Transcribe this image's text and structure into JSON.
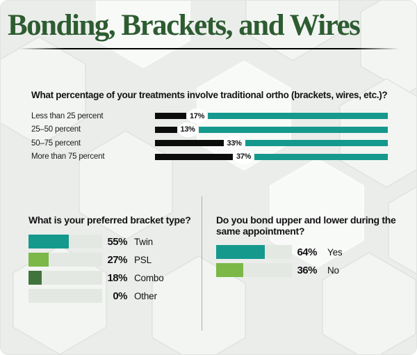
{
  "title": "Bonding, Brackets, and Wires",
  "colors": {
    "title_green": "#2d5c31",
    "teal": "#16998d",
    "light_green": "#7bb848",
    "dark_green": "#41743c",
    "bar_black": "#0c0c0c",
    "track_gray": "#e4e8e2"
  },
  "q1": {
    "question": "What percentage of your treatments involve traditional ortho (brackets, wires, etc.)?",
    "rows": [
      {
        "label": "Less than 25 percent",
        "pct": 17,
        "pct_label": "17%"
      },
      {
        "label": "25–50 percent",
        "pct": 13,
        "pct_label": "13%"
      },
      {
        "label": "50–75 percent",
        "pct": 33,
        "pct_label": "33%"
      },
      {
        "label": "More than 75 percent",
        "pct": 37,
        "pct_label": "37%"
      }
    ]
  },
  "q2": {
    "question": "What is your preferred bracket type?",
    "rows": [
      {
        "name": "Twin",
        "pct": 55,
        "pct_label": "55%",
        "color": "#16998d"
      },
      {
        "name": "PSL",
        "pct": 27,
        "pct_label": "27%",
        "color": "#7bb848"
      },
      {
        "name": "Combo",
        "pct": 18,
        "pct_label": "18%",
        "color": "#41743c"
      },
      {
        "name": "Other",
        "pct": 0,
        "pct_label": "0%",
        "color": null
      }
    ]
  },
  "q3": {
    "question_line1": "Do you bond upper and lower during the",
    "question_line2": "same appointment?",
    "rows": [
      {
        "name": "Yes",
        "pct": 64,
        "pct_label": "64%",
        "color": "#16998d"
      },
      {
        "name": "No",
        "pct": 36,
        "pct_label": "36%",
        "color": "#7bb848"
      }
    ]
  },
  "chart_data": [
    {
      "type": "bar",
      "orientation": "horizontal",
      "title": "What percentage of your treatments involve traditional ortho (brackets, wires, etc.)?",
      "categories": [
        "Less than 25 percent",
        "25–50 percent",
        "50–75 percent",
        "More than 75 percent"
      ],
      "values": [
        17,
        13,
        33,
        37
      ],
      "unit": "%",
      "style_note": "black segment = value, teal segment = remainder to 100%, value shown in white circle"
    },
    {
      "type": "bar",
      "orientation": "horizontal",
      "title": "What is your preferred bracket type?",
      "categories": [
        "Twin",
        "PSL",
        "Combo",
        "Other"
      ],
      "values": [
        55,
        27,
        18,
        0
      ],
      "unit": "%",
      "bar_colors": [
        "#16998d",
        "#7bb848",
        "#41743c",
        "none"
      ]
    },
    {
      "type": "bar",
      "orientation": "horizontal",
      "title": "Do you bond upper and lower during the same appointment?",
      "categories": [
        "Yes",
        "No"
      ],
      "values": [
        64,
        36
      ],
      "unit": "%",
      "bar_colors": [
        "#16998d",
        "#7bb848"
      ]
    }
  ]
}
